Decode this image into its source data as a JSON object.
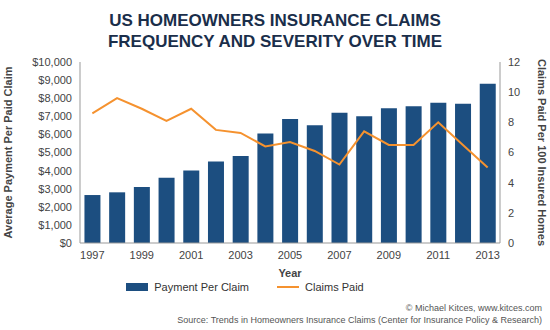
{
  "chart_data": {
    "type": "bar",
    "title": "US HOMEOWNERS INSURANCE CLAIMS FREQUENCY AND SEVERITY OVER TIME",
    "x_label": "Year",
    "y_label": "Average Payment Per Paid Claim",
    "y2_label": "Claims Paid Per 100 Insured Homes",
    "annotations": [
      "© Michael Kitces, www.kitces.com",
      "Source: Trends in Homeowners Insurance Claims (Center for Insurance Policy & Research)"
    ],
    "categories": [
      "1997",
      null,
      "1999",
      null,
      "2001",
      null,
      "2003",
      null,
      "2005",
      null,
      "2007",
      null,
      "2009",
      null,
      "2011",
      null,
      "2013"
    ],
    "series": [
      {
        "name": "Payment Per Claim",
        "type": "bar",
        "color": "#1c4e80",
        "values": [
          2650,
          2800,
          3100,
          3600,
          4000,
          4500,
          4800,
          6050,
          6850,
          6500,
          7200,
          7000,
          7450,
          7550,
          7750,
          7700,
          8800
        ]
      },
      {
        "name": "Claims Paid",
        "type": "line",
        "color": "#f5922f",
        "marker": "none",
        "axis": "y2",
        "values": [
          8.6,
          9.6,
          8.9,
          8.1,
          8.9,
          7.5,
          7.3,
          6.4,
          6.7,
          6.1,
          5.2,
          7.4,
          6.5,
          6.5,
          8.0,
          6.5,
          5.0
        ]
      }
    ],
    "ylim": [
      0,
      10000
    ],
    "yticks": [
      {
        "value": 0,
        "label": "$0"
      },
      {
        "value": 1000,
        "label": "$1,000"
      },
      {
        "value": 2000,
        "label": "$2,000"
      },
      {
        "value": 3000,
        "label": "$3,000"
      },
      {
        "value": 4000,
        "label": "$4,000"
      },
      {
        "value": 5000,
        "label": "$5,000"
      },
      {
        "value": 6000,
        "label": "$6,000"
      },
      {
        "value": 7000,
        "label": "$7,000"
      },
      {
        "value": 8000,
        "label": "$8,000"
      },
      {
        "value": 9000,
        "label": "$9,000"
      },
      {
        "value": 10000,
        "label": "$10,000"
      }
    ],
    "y2lim": [
      0,
      12
    ],
    "y2ticks": [
      0,
      2,
      4,
      6,
      8,
      10,
      12
    ],
    "grid": false,
    "legend": "bottom"
  }
}
